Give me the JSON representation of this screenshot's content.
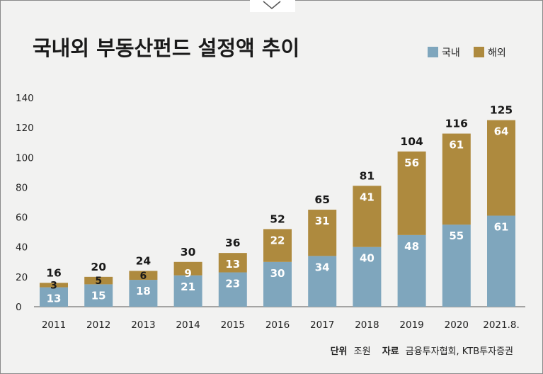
{
  "chart_data": {
    "type": "bar",
    "stacked": true,
    "title": "국내외 부동산펀드 설정액 추이",
    "categories": [
      "2011",
      "2012",
      "2013",
      "2014",
      "2015",
      "2016",
      "2017",
      "2018",
      "2019",
      "2020",
      "2021.8."
    ],
    "series": [
      {
        "name": "국내",
        "color": "#7fa6bd",
        "values": [
          13,
          15,
          18,
          21,
          23,
          30,
          34,
          40,
          48,
          55,
          61
        ]
      },
      {
        "name": "해외",
        "color": "#ae8a3e",
        "values": [
          3,
          5,
          6,
          9,
          13,
          22,
          31,
          41,
          56,
          61,
          64
        ]
      }
    ],
    "totals": [
      16,
      20,
      24,
      30,
      36,
      52,
      65,
      81,
      104,
      116,
      125
    ],
    "ylim": [
      0,
      140
    ],
    "yticks": [
      0,
      20,
      40,
      60,
      80,
      100,
      120,
      140
    ],
    "legend_position": "top-right",
    "grid": false
  },
  "footer": {
    "unit_label": "단위",
    "unit_value": "조원",
    "source_label": "자료",
    "source_value": "금융투자협회, KTB투자증권"
  }
}
